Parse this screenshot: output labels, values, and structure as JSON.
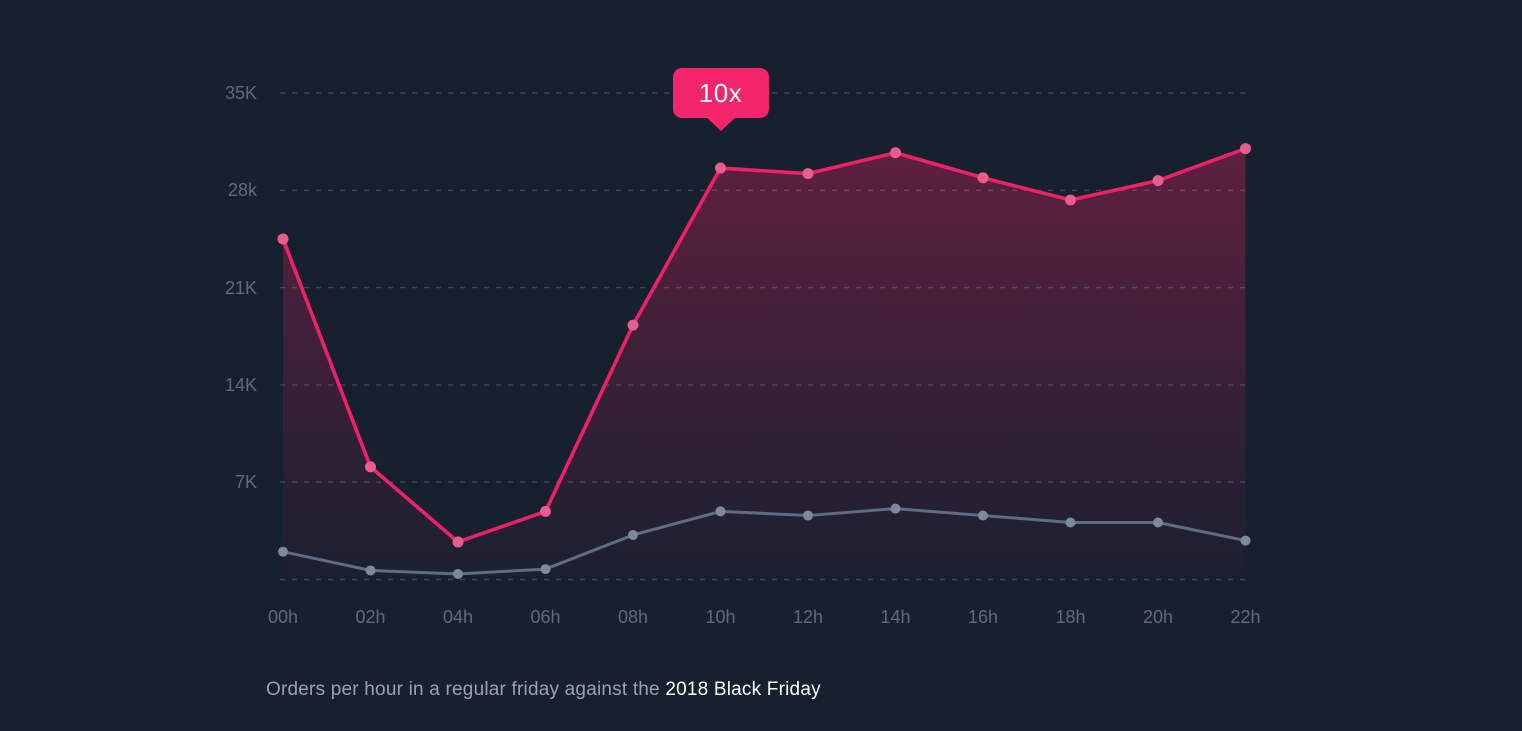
{
  "chart_data": {
    "type": "line",
    "title": "Orders per hour in a regular friday against the 2018 Black Friday",
    "xlabel": "",
    "ylabel": "",
    "categories": [
      "00h",
      "02h",
      "04h",
      "06h",
      "08h",
      "10h",
      "12h",
      "14h",
      "16h",
      "18h",
      "20h",
      "22h"
    ],
    "series": [
      {
        "id": "black-friday-2018",
        "name": "2018 Black Friday",
        "color": "#EE2164",
        "point_color": "#E95C8C",
        "area_fill": true,
        "values": [
          24500,
          8100,
          2700,
          4900,
          18300,
          29600,
          29200,
          30700,
          28900,
          27300,
          28700,
          31000
        ]
      },
      {
        "id": "regular-friday",
        "name": "Regular friday",
        "color": "#5E6D81",
        "point_color": "#7C899C",
        "area_fill": false,
        "values": [
          2000,
          650,
          400,
          750,
          3200,
          4900,
          4600,
          5100,
          4600,
          4100,
          4100,
          2800
        ]
      }
    ],
    "y_ticks": [
      {
        "label": "35K",
        "value": 35000
      },
      {
        "label": "28k",
        "value": 28000
      },
      {
        "label": "21K",
        "value": 21000
      },
      {
        "label": "14K",
        "value": 14000
      },
      {
        "label": "7K",
        "value": 7000
      },
      {
        "label": "",
        "value": 0
      }
    ],
    "ylim": [
      0,
      37000
    ],
    "grid": "horizontal-dashed",
    "legend": "none",
    "annotation": {
      "label": "10x",
      "category_index": 5,
      "color": "#F3256B",
      "text_color": "#FFFFFF"
    }
  },
  "colors": {
    "background": "#16202E",
    "gridline": "rgba(150,165,188,0.30)",
    "axis_label": "#5E6A7E",
    "caption_normal": "#98A2B1",
    "caption_highlight": "#FFFFFF"
  },
  "caption": {
    "normal": "Orders per hour in a regular friday against the ",
    "highlight": "2018 Black Friday"
  }
}
